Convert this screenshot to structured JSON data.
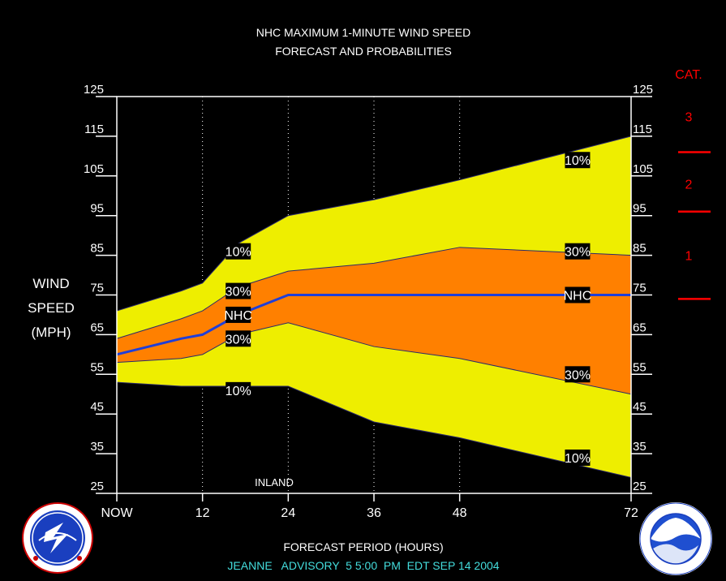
{
  "chart_data": {
    "type": "area",
    "title": "NHC MAXIMUM 1-MINUTE WIND SPEED",
    "subtitle": "FORECAST AND PROBABILITIES",
    "ylabel": [
      "WIND",
      "SPEED",
      "(MPH)"
    ],
    "xlabel": "FORECAST PERIOD (HOURS)",
    "footer": "JEANNE   ADVISORY  5 5:00  PM  EDT SEP 14 2004",
    "annotation": "INLAND",
    "ylim": [
      25,
      125
    ],
    "yticks": [
      25,
      35,
      45,
      55,
      65,
      75,
      85,
      95,
      105,
      115,
      125
    ],
    "xlim": [
      0,
      72
    ],
    "xticks": [
      {
        "x": 0,
        "label": "NOW"
      },
      {
        "x": 12,
        "label": "12"
      },
      {
        "x": 24,
        "label": "24"
      },
      {
        "x": 36,
        "label": "36"
      },
      {
        "x": 48,
        "label": "48"
      },
      {
        "x": 72,
        "label": "72"
      }
    ],
    "x": [
      0,
      9,
      12,
      17,
      24,
      36,
      48,
      72
    ],
    "series": [
      {
        "name": "10%",
        "values": [
          71,
          76,
          78,
          88,
          95,
          99,
          104,
          115
        ]
      },
      {
        "name": "30%",
        "values": [
          64,
          69,
          71,
          77,
          81,
          83,
          87,
          85
        ]
      },
      {
        "name": "NHC",
        "values": [
          60,
          64,
          65,
          70,
          75,
          75,
          75,
          75
        ]
      },
      {
        "name": "30%",
        "values": [
          58,
          59,
          60,
          65,
          68,
          62,
          59,
          50
        ]
      },
      {
        "name": "10%",
        "values": [
          53,
          52,
          52,
          52,
          52,
          43,
          39,
          29
        ]
      }
    ],
    "labels": [
      {
        "text": "10%",
        "x": 17,
        "y": 86
      },
      {
        "text": "30%",
        "x": 17,
        "y": 76
      },
      {
        "text": "NHC",
        "x": 17,
        "y": 70
      },
      {
        "text": "30%",
        "x": 17,
        "y": 64
      },
      {
        "text": "10%",
        "x": 17,
        "y": 51
      },
      {
        "text": "10%",
        "x": 64.5,
        "y": 109
      },
      {
        "text": "30%",
        "x": 64.5,
        "y": 86
      },
      {
        "text": "NHC",
        "x": 64.5,
        "y": 75
      },
      {
        "text": "30%",
        "x": 64.5,
        "y": 55
      },
      {
        "text": "10%",
        "x": 64.5,
        "y": 34
      }
    ],
    "category_title": "CAT.",
    "categories": [
      {
        "label": "3",
        "y": 120
      },
      {
        "label": "2",
        "y": 103
      },
      {
        "label": "1",
        "y": 85
      }
    ],
    "category_thresholds": [
      111,
      96,
      74
    ],
    "colors": {
      "outer_band": "#eeee00",
      "inner_band": "#ff8000",
      "nhc_line": "#1f3fd8",
      "category": "#ff0000",
      "footer": "#44dddd"
    }
  }
}
